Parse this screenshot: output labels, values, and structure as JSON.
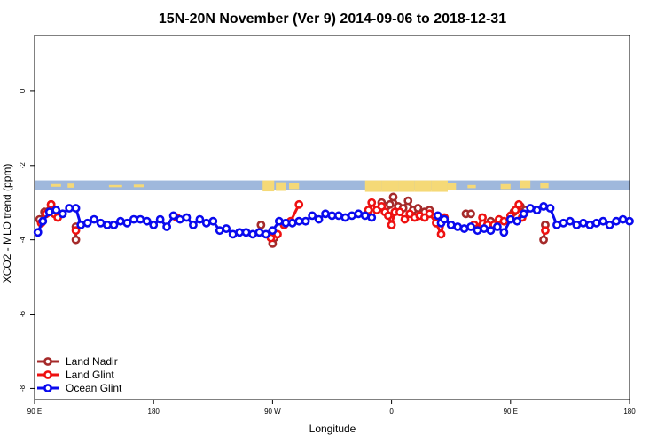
{
  "chart_data": {
    "type": "line",
    "title": "15N-20N November (Ver 9)   2014-09-06 to 2018-12-31",
    "xlabel": "Longitude",
    "ylabel": "XCO2 - MLO trend (ppm)",
    "xlim": [
      90,
      450
    ],
    "ylim": [
      -8.3,
      1.5
    ],
    "x_ticks": [
      {
        "value": 90,
        "label": "90 E"
      },
      {
        "value": 162,
        "label": "180"
      },
      {
        "value": 234,
        "label": "90 W"
      },
      {
        "value": 306,
        "label": "0"
      },
      {
        "value": 378,
        "label": "90 E"
      },
      {
        "value": 450,
        "label": "180"
      }
    ],
    "y_ticks": [
      {
        "value": 0,
        "label": "0"
      },
      {
        "value": -2,
        "label": "-2"
      },
      {
        "value": -4,
        "label": "-4"
      },
      {
        "value": -6,
        "label": "-6"
      },
      {
        "value": -8,
        "label": "-8"
      }
    ],
    "map_band": {
      "y_top": -2.4,
      "y_bottom": -2.65,
      "ocean_color": "#9fb8dc",
      "land_color": "#f5d977"
    },
    "legend": {
      "position": "bottom-left"
    },
    "series": [
      {
        "name": "Land Nadir",
        "color": "#a52a2a",
        "segments": [
          [
            [
              93,
              -3.45
            ],
            [
              96,
              -3.25
            ],
            [
              100,
              -3.05
            ],
            [
              103,
              -3.3
            ]
          ],
          [
            [
              115,
              -3.65
            ],
            [
              115,
              -4.0
            ]
          ],
          [
            [
              227,
              -3.6
            ]
          ],
          [
            [
              234,
              -4.1
            ],
            [
              235,
              -3.95
            ]
          ],
          [
            [
              300,
              -3.0
            ],
            [
              303,
              -3.1
            ],
            [
              305,
              -3.05
            ],
            [
              307,
              -2.85
            ],
            [
              310,
              -3.1
            ],
            [
              313,
              -3.15
            ],
            [
              316,
              -2.95
            ],
            [
              319,
              -3.2
            ],
            [
              322,
              -3.15
            ],
            [
              326,
              -3.25
            ],
            [
              329,
              -3.2
            ]
          ],
          [
            [
              351,
              -3.3
            ],
            [
              354,
              -3.3
            ]
          ],
          [
            [
              366,
              -3.5
            ]
          ],
          [
            [
              380,
              -3.25
            ],
            [
              384,
              -3.1
            ],
            [
              387,
              -3.2
            ]
          ],
          [
            [
              399,
              -3.6
            ],
            [
              398,
              -4.0
            ]
          ]
        ]
      },
      {
        "name": "Land Glint",
        "color": "#ee1111",
        "segments": [
          [
            [
              94,
              -3.55
            ],
            [
              97,
              -3.3
            ],
            [
              100,
              -3.05
            ],
            [
              102,
              -3.3
            ],
            [
              104,
              -3.4
            ]
          ],
          [
            [
              115,
              -3.75
            ]
          ],
          [
            [
              176,
              -3.4
            ]
          ],
          [
            [
              233,
              -3.95
            ],
            [
              237,
              -3.85
            ]
          ],
          [
            [
              241,
              -3.6
            ],
            [
              245,
              -3.5
            ],
            [
              250,
              -3.05
            ]
          ],
          [
            [
              292,
              -3.2
            ],
            [
              294,
              -3.0
            ],
            [
              297,
              -3.2
            ],
            [
              300,
              -3.1
            ],
            [
              302,
              -3.25
            ],
            [
              304,
              -3.35
            ],
            [
              306,
              -3.6
            ],
            [
              308,
              -3.25
            ],
            [
              311,
              -3.25
            ],
            [
              314,
              -3.45
            ],
            [
              317,
              -3.3
            ],
            [
              320,
              -3.4
            ],
            [
              323,
              -3.35
            ],
            [
              326,
              -3.4
            ],
            [
              329,
              -3.3
            ],
            [
              333,
              -3.55
            ],
            [
              336,
              -3.85
            ],
            [
              338,
              -3.4
            ]
          ],
          [
            [
              356,
              -3.6
            ],
            [
              358,
              -3.7
            ],
            [
              361,
              -3.4
            ],
            [
              364,
              -3.6
            ],
            [
              368,
              -3.6
            ],
            [
              371,
              -3.45
            ],
            [
              374,
              -3.5
            ],
            [
              378,
              -3.35
            ],
            [
              381,
              -3.2
            ],
            [
              383,
              -3.05
            ],
            [
              385,
              -3.4
            ]
          ],
          [
            [
              399,
              -3.75
            ]
          ]
        ]
      },
      {
        "name": "Ocean Glint",
        "color": "#0a0aee",
        "segments": [
          [
            [
              92,
              -3.8
            ],
            [
              95,
              -3.5
            ],
            [
              99,
              -3.25
            ],
            [
              103,
              -3.2
            ],
            [
              107,
              -3.3
            ],
            [
              111,
              -3.15
            ],
            [
              115,
              -3.15
            ],
            [
              118,
              -3.6
            ],
            [
              122,
              -3.55
            ],
            [
              126,
              -3.45
            ],
            [
              130,
              -3.55
            ],
            [
              134,
              -3.6
            ],
            [
              138,
              -3.6
            ],
            [
              142,
              -3.5
            ],
            [
              146,
              -3.55
            ],
            [
              150,
              -3.45
            ],
            [
              154,
              -3.45
            ],
            [
              158,
              -3.5
            ],
            [
              162,
              -3.6
            ],
            [
              166,
              -3.45
            ],
            [
              170,
              -3.65
            ],
            [
              174,
              -3.35
            ],
            [
              178,
              -3.45
            ],
            [
              182,
              -3.4
            ],
            [
              186,
              -3.6
            ],
            [
              190,
              -3.45
            ],
            [
              194,
              -3.55
            ],
            [
              198,
              -3.5
            ],
            [
              202,
              -3.75
            ],
            [
              206,
              -3.7
            ],
            [
              210,
              -3.85
            ],
            [
              214,
              -3.8
            ],
            [
              218,
              -3.8
            ],
            [
              222,
              -3.85
            ],
            [
              226,
              -3.8
            ],
            [
              230,
              -3.85
            ],
            [
              234,
              -3.75
            ],
            [
              238,
              -3.5
            ],
            [
              242,
              -3.55
            ],
            [
              246,
              -3.55
            ],
            [
              250,
              -3.5
            ],
            [
              254,
              -3.5
            ],
            [
              258,
              -3.35
            ],
            [
              262,
              -3.45
            ],
            [
              266,
              -3.3
            ],
            [
              270,
              -3.35
            ],
            [
              274,
              -3.35
            ],
            [
              278,
              -3.4
            ],
            [
              282,
              -3.35
            ],
            [
              286,
              -3.3
            ],
            [
              290,
              -3.35
            ],
            [
              294,
              -3.4
            ]
          ],
          [
            [
              334,
              -3.35
            ],
            [
              336,
              -3.55
            ],
            [
              338,
              -3.45
            ],
            [
              342,
              -3.6
            ],
            [
              346,
              -3.65
            ],
            [
              350,
              -3.7
            ],
            [
              354,
              -3.65
            ],
            [
              358,
              -3.75
            ],
            [
              362,
              -3.7
            ],
            [
              366,
              -3.75
            ],
            [
              370,
              -3.65
            ],
            [
              374,
              -3.8
            ],
            [
              378,
              -3.45
            ],
            [
              382,
              -3.5
            ],
            [
              386,
              -3.3
            ],
            [
              390,
              -3.15
            ],
            [
              394,
              -3.2
            ],
            [
              398,
              -3.1
            ],
            [
              402,
              -3.15
            ],
            [
              406,
              -3.6
            ],
            [
              410,
              -3.55
            ],
            [
              414,
              -3.5
            ],
            [
              418,
              -3.6
            ],
            [
              422,
              -3.55
            ],
            [
              426,
              -3.6
            ],
            [
              430,
              -3.55
            ],
            [
              434,
              -3.5
            ],
            [
              438,
              -3.6
            ],
            [
              442,
              -3.5
            ],
            [
              446,
              -3.45
            ],
            [
              450,
              -3.5
            ]
          ]
        ]
      }
    ]
  }
}
